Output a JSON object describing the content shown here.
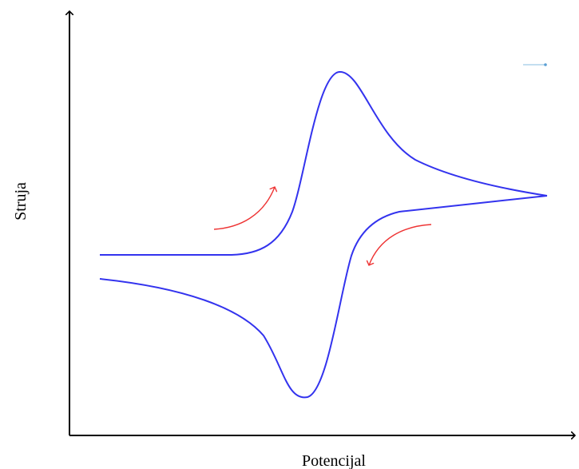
{
  "chart_data": {
    "type": "line",
    "xlabel": "Potencijal",
    "ylabel": "Struja",
    "grid": false,
    "legend": "none",
    "series": [
      {
        "color": "#3333ee"
      }
    ],
    "annotations": [
      {
        "kind": "arrow",
        "meaning": "forward-scan",
        "color": "#ee3333"
      },
      {
        "kind": "arrow",
        "meaning": "reverse-scan",
        "color": "#ee3333"
      }
    ]
  },
  "colors": {
    "axis": "#000000",
    "curve": "#3333ee",
    "arrow": "#ee3333"
  }
}
